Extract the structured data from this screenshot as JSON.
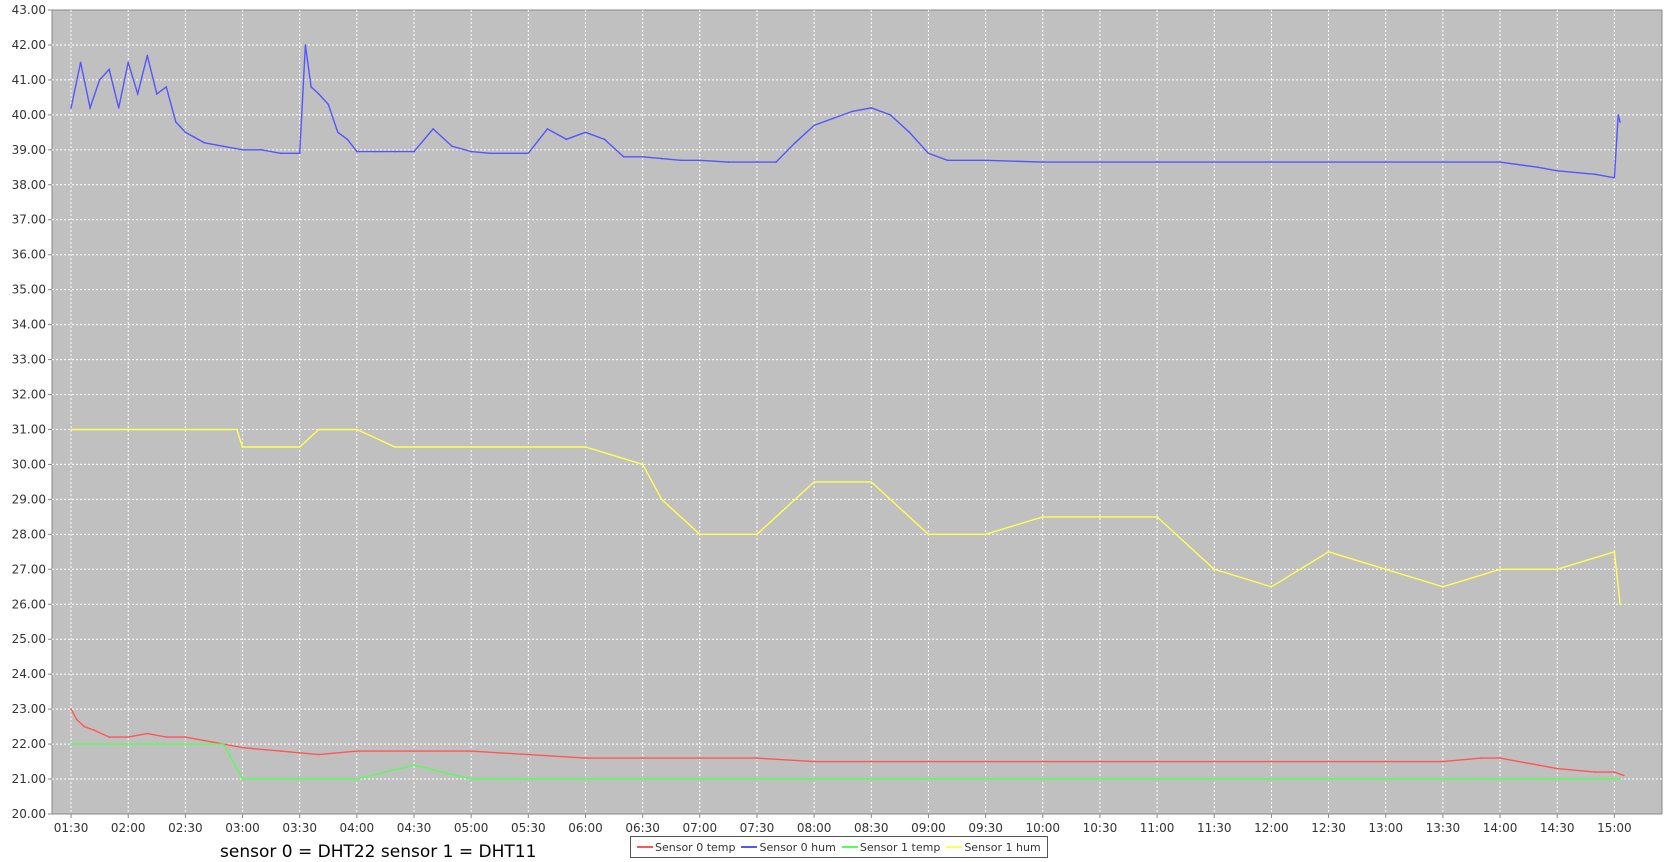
{
  "chart_data": {
    "type": "line",
    "title": "",
    "xlabel": "",
    "ylabel": "",
    "ylim": [
      20,
      43
    ],
    "y_ticks": [
      "20.00",
      "21.00",
      "22.00",
      "23.00",
      "24.00",
      "25.00",
      "26.00",
      "27.00",
      "28.00",
      "29.00",
      "30.00",
      "31.00",
      "32.00",
      "33.00",
      "34.00",
      "35.00",
      "36.00",
      "37.00",
      "38.00",
      "39.00",
      "40.00",
      "41.00",
      "42.00",
      "43.00"
    ],
    "xlim": [
      "01:20",
      "15:25"
    ],
    "x_ticks": [
      "01:30",
      "02:00",
      "02:30",
      "03:00",
      "03:30",
      "04:00",
      "04:30",
      "05:00",
      "05:30",
      "06:00",
      "06:30",
      "07:00",
      "07:30",
      "08:00",
      "08:30",
      "09:00",
      "09:30",
      "10:00",
      "10:30",
      "11:00",
      "11:30",
      "12:00",
      "12:30",
      "13:00",
      "13:30",
      "14:00",
      "14:30",
      "15:00"
    ],
    "grid": true,
    "background": "#c0c0c0",
    "legend_position": "bottom-center",
    "annotation": "sensor 0 = DHT22 sensor 1 = DHT11",
    "series": [
      {
        "name": "Sensor 0 temp",
        "color": "#ff5555",
        "x": [
          "01:30",
          "01:33",
          "01:37",
          "01:42",
          "01:50",
          "02:00",
          "02:10",
          "02:20",
          "02:30",
          "02:40",
          "02:50",
          "03:00",
          "03:20",
          "03:40",
          "04:00",
          "04:30",
          "05:00",
          "05:30",
          "06:00",
          "06:30",
          "07:00",
          "07:30",
          "08:00",
          "08:30",
          "09:00",
          "10:00",
          "11:00",
          "12:00",
          "13:00",
          "13:30",
          "13:50",
          "14:00",
          "14:20",
          "14:30",
          "14:50",
          "15:00",
          "15:05"
        ],
        "values": [
          23.0,
          22.7,
          22.5,
          22.4,
          22.2,
          22.2,
          22.3,
          22.2,
          22.2,
          22.1,
          22.0,
          21.9,
          21.8,
          21.7,
          21.8,
          21.8,
          21.8,
          21.7,
          21.6,
          21.6,
          21.6,
          21.6,
          21.5,
          21.5,
          21.5,
          21.5,
          21.5,
          21.5,
          21.5,
          21.5,
          21.6,
          21.6,
          21.4,
          21.3,
          21.2,
          21.2,
          21.1
        ]
      },
      {
        "name": "Sensor 0 hum",
        "color": "#5555ff",
        "x": [
          "01:30",
          "01:35",
          "01:40",
          "01:45",
          "01:50",
          "01:55",
          "02:00",
          "02:05",
          "02:10",
          "02:15",
          "02:20",
          "02:25",
          "02:30",
          "02:40",
          "02:50",
          "03:00",
          "03:10",
          "03:20",
          "03:30",
          "03:33",
          "03:36",
          "03:40",
          "03:45",
          "03:50",
          "03:55",
          "04:00",
          "04:10",
          "04:20",
          "04:30",
          "04:40",
          "04:50",
          "05:00",
          "05:10",
          "05:20",
          "05:30",
          "05:40",
          "05:50",
          "06:00",
          "06:10",
          "06:20",
          "06:30",
          "06:40",
          "06:50",
          "07:00",
          "07:15",
          "07:30",
          "07:40",
          "07:50",
          "08:00",
          "08:10",
          "08:20",
          "08:30",
          "08:40",
          "08:50",
          "09:00",
          "09:10",
          "09:30",
          "10:00",
          "11:00",
          "12:00",
          "13:00",
          "13:30",
          "14:00",
          "14:20",
          "14:30",
          "14:50",
          "15:00",
          "15:02",
          "15:03"
        ],
        "values": [
          40.2,
          41.5,
          40.2,
          41.0,
          41.3,
          40.2,
          41.5,
          40.6,
          41.7,
          40.6,
          40.8,
          39.8,
          39.5,
          39.2,
          39.1,
          39.0,
          39.0,
          38.9,
          38.9,
          42.0,
          40.8,
          40.6,
          40.3,
          39.5,
          39.3,
          38.95,
          38.95,
          38.95,
          38.95,
          39.6,
          39.1,
          38.95,
          38.9,
          38.9,
          38.9,
          39.6,
          39.3,
          39.5,
          39.3,
          38.8,
          38.8,
          38.75,
          38.7,
          38.7,
          38.65,
          38.65,
          38.65,
          39.2,
          39.7,
          39.9,
          40.1,
          40.2,
          40.0,
          39.5,
          38.9,
          38.7,
          38.7,
          38.65,
          38.65,
          38.65,
          38.65,
          38.65,
          38.65,
          38.5,
          38.4,
          38.3,
          38.2,
          40.0,
          39.8
        ]
      },
      {
        "name": "Sensor 1 temp",
        "color": "#55ff55",
        "x": [
          "01:30",
          "02:50",
          "02:55",
          "03:00",
          "03:30",
          "04:00",
          "04:30",
          "05:00",
          "06:00",
          "07:00",
          "08:00",
          "09:00",
          "10:00",
          "11:00",
          "12:00",
          "13:00",
          "14:00",
          "15:00",
          "15:03"
        ],
        "values": [
          22.0,
          22.0,
          21.5,
          21.0,
          21.0,
          21.0,
          21.4,
          21.0,
          21.0,
          21.0,
          21.0,
          21.0,
          21.0,
          21.0,
          21.0,
          21.0,
          21.0,
          21.0,
          21.0
        ]
      },
      {
        "name": "Sensor 1 hum",
        "color": "#ffff55",
        "x": [
          "01:30",
          "02:57",
          "03:00",
          "03:30",
          "03:40",
          "04:00",
          "04:20",
          "04:30",
          "05:00",
          "05:30",
          "06:00",
          "06:30",
          "06:40",
          "07:00",
          "07:30",
          "08:00",
          "08:30",
          "09:00",
          "09:30",
          "10:00",
          "10:30",
          "11:00",
          "11:30",
          "12:00",
          "12:30",
          "13:00",
          "13:30",
          "14:00",
          "14:30",
          "15:00",
          "15:03"
        ],
        "values": [
          31.0,
          31.0,
          30.5,
          30.5,
          31.0,
          31.0,
          30.5,
          30.5,
          30.5,
          30.5,
          30.5,
          30.0,
          29.0,
          28.0,
          28.0,
          29.5,
          29.5,
          28.0,
          28.0,
          28.5,
          28.5,
          28.5,
          27.0,
          26.5,
          27.5,
          27.0,
          26.5,
          27.0,
          27.0,
          27.5,
          26.0
        ]
      }
    ]
  }
}
